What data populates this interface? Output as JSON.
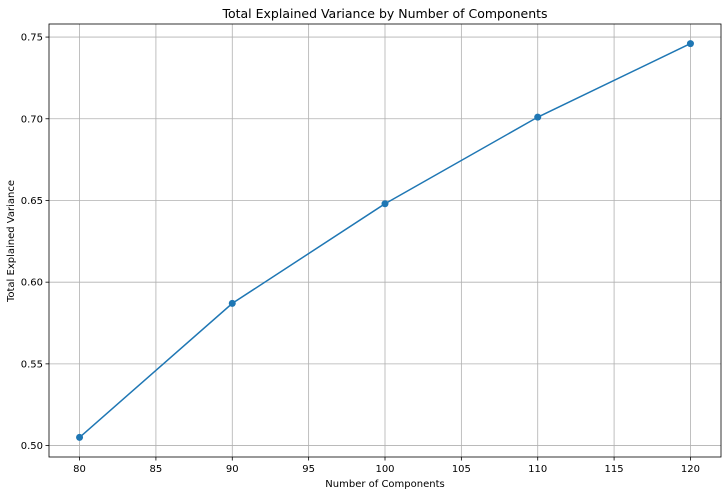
{
  "chart_data": {
    "type": "line",
    "title": "Total Explained Variance by Number of Components",
    "xlabel": "Number of Components",
    "ylabel": "Total Explained Variance",
    "x": [
      80,
      90,
      100,
      110,
      120
    ],
    "series": [
      {
        "values": [
          0.505,
          0.587,
          0.648,
          0.701,
          0.746
        ],
        "color": "#1f77b4",
        "marker": "circle"
      }
    ],
    "xlim": [
      78,
      122
    ],
    "ylim": [
      0.493,
      0.758
    ],
    "xticks": [
      80,
      85,
      90,
      95,
      100,
      105,
      110,
      115,
      120
    ],
    "xtick_labels": [
      "80",
      "85",
      "90",
      "95",
      "100",
      "105",
      "110",
      "115",
      "120"
    ],
    "yticks": [
      0.5,
      0.55,
      0.6,
      0.65,
      0.7,
      0.75
    ],
    "ytick_labels": [
      "0.50",
      "0.55",
      "0.60",
      "0.65",
      "0.70",
      "0.75"
    ],
    "grid": true,
    "legend": false
  }
}
